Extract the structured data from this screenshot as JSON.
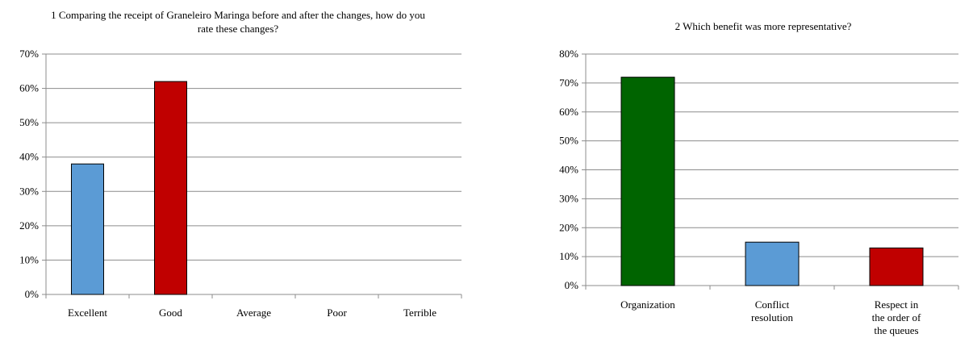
{
  "chart_data": [
    {
      "type": "bar",
      "title": "1 Comparing the receipt of Graneleiro Maringa before and after the changes, how do you rate these changes?",
      "categories": [
        "Excellent",
        "Good",
        "Average",
        "Poor",
        "Terrible"
      ],
      "values": [
        38,
        62,
        0,
        0,
        0
      ],
      "colors": [
        "#5b9bd5",
        "#c00000",
        "#5b9bd5",
        "#5b9bd5",
        "#5b9bd5"
      ],
      "ylim": [
        0,
        70
      ],
      "yticks": [
        "0%",
        "10%",
        "20%",
        "30%",
        "40%",
        "50%",
        "60%",
        "70%"
      ],
      "grid": true,
      "xlabel": "",
      "ylabel": ""
    },
    {
      "type": "bar",
      "title": "2 Which benefit was more representative?",
      "categories": [
        "Organization",
        "Conflict resolution",
        "Respect in the order of the queues"
      ],
      "category_lines": [
        [
          "Organization"
        ],
        [
          "Conflict",
          "resolution"
        ],
        [
          "Respect in",
          "the order of",
          "the queues"
        ]
      ],
      "values": [
        72,
        15,
        13
      ],
      "colors": [
        "#006400",
        "#5b9bd5",
        "#c00000"
      ],
      "ylim": [
        0,
        80
      ],
      "yticks": [
        "0%",
        "10%",
        "20%",
        "30%",
        "40%",
        "50%",
        "60%",
        "70%",
        "80%"
      ],
      "grid": true,
      "xlabel": "",
      "ylabel": ""
    }
  ]
}
